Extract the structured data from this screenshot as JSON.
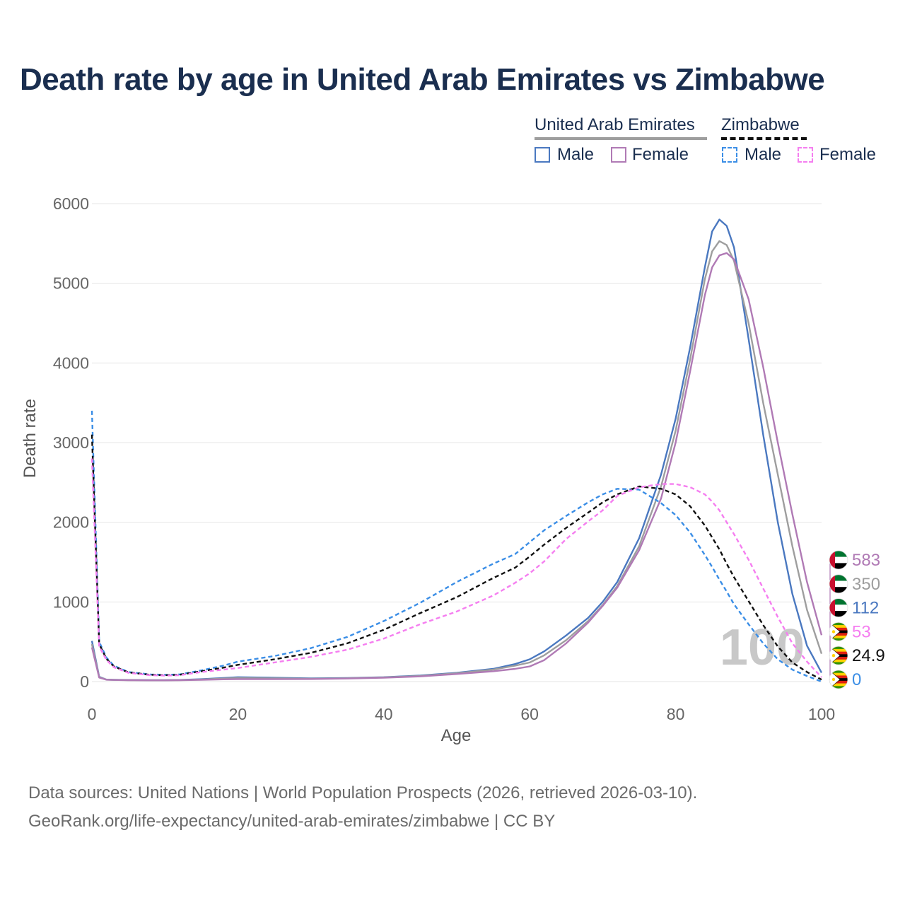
{
  "title": "Death rate by age in United Arab Emirates vs Zimbabwe",
  "legend": {
    "groups": [
      {
        "name": "United Arab Emirates",
        "line_style": "solid",
        "color": "#9e9e9e"
      },
      {
        "name": "Zimbabwe",
        "line_style": "dashed",
        "color": "#111111"
      }
    ],
    "items": [
      {
        "group": "United Arab Emirates",
        "label": "Male",
        "color": "#4a78c0",
        "dashed": false
      },
      {
        "group": "United Arab Emirates",
        "label": "Female",
        "color": "#b07ab5",
        "dashed": false
      },
      {
        "group": "Zimbabwe",
        "label": "Male",
        "color": "#3b8ee6",
        "dashed": true
      },
      {
        "group": "Zimbabwe",
        "label": "Female",
        "color": "#f57ef0",
        "dashed": true
      }
    ]
  },
  "chart_data": {
    "type": "line",
    "title": "Death rate by age in United Arab Emirates vs Zimbabwe",
    "xlabel": "Age",
    "ylabel": "Death rate",
    "xlim": [
      0,
      100
    ],
    "ylim": [
      0,
      6000
    ],
    "xticks": [
      0,
      20,
      40,
      60,
      80,
      100
    ],
    "yticks": [
      0,
      1000,
      2000,
      3000,
      4000,
      5000,
      6000
    ],
    "grid": true,
    "current_age_label": "100",
    "x": [
      0,
      1,
      2,
      3,
      5,
      8,
      10,
      12,
      15,
      18,
      20,
      25,
      30,
      35,
      40,
      45,
      50,
      55,
      58,
      60,
      62,
      65,
      68,
      70,
      72,
      75,
      78,
      80,
      82,
      84,
      85,
      86,
      87,
      88,
      90,
      92,
      94,
      96,
      98,
      100
    ],
    "series": [
      {
        "name": "United Arab Emirates Male",
        "country": "United Arab Emirates",
        "sex": "Male",
        "color": "#4a78c0",
        "dashed": false,
        "values": [
          510,
          60,
          25,
          22,
          20,
          18,
          18,
          20,
          30,
          45,
          55,
          48,
          40,
          45,
          55,
          75,
          110,
          160,
          220,
          280,
          380,
          580,
          800,
          1000,
          1250,
          1800,
          2600,
          3300,
          4200,
          5200,
          5650,
          5800,
          5720,
          5450,
          4300,
          3100,
          2000,
          1100,
          450,
          112
        ]
      },
      {
        "name": "United Arab Emirates Total",
        "country": "United Arab Emirates",
        "sex": "Total",
        "color": "#9e9e9e",
        "dashed": false,
        "values": [
          470,
          55,
          24,
          21,
          19,
          17,
          17,
          19,
          26,
          38,
          45,
          40,
          36,
          42,
          52,
          70,
          105,
          150,
          200,
          240,
          330,
          520,
          760,
          960,
          1200,
          1700,
          2450,
          3150,
          4050,
          5050,
          5400,
          5530,
          5480,
          5280,
          4500,
          3500,
          2600,
          1700,
          900,
          350
        ]
      },
      {
        "name": "United Arab Emirates Female",
        "country": "United Arab Emirates",
        "sex": "Female",
        "color": "#b07ab5",
        "dashed": false,
        "values": [
          430,
          50,
          23,
          20,
          18,
          16,
          16,
          18,
          22,
          28,
          30,
          30,
          32,
          38,
          48,
          65,
          95,
          130,
          160,
          190,
          270,
          480,
          740,
          950,
          1180,
          1650,
          2300,
          3000,
          3900,
          4850,
          5200,
          5350,
          5380,
          5300,
          4800,
          3950,
          3000,
          2100,
          1250,
          583
        ]
      },
      {
        "name": "Zimbabwe Male",
        "country": "Zimbabwe",
        "sex": "Male",
        "color": "#3b8ee6",
        "dashed": true,
        "values": [
          3400,
          500,
          300,
          200,
          120,
          90,
          85,
          90,
          140,
          200,
          250,
          320,
          420,
          560,
          760,
          990,
          1250,
          1480,
          1600,
          1750,
          1900,
          2080,
          2250,
          2350,
          2420,
          2410,
          2240,
          2090,
          1870,
          1590,
          1440,
          1280,
          1130,
          970,
          720,
          480,
          280,
          150,
          70,
          0
        ]
      },
      {
        "name": "Zimbabwe Total",
        "country": "Zimbabwe",
        "sex": "Total",
        "color": "#111111",
        "dashed": true,
        "values": [
          3100,
          470,
          285,
          190,
          115,
          85,
          80,
          85,
          130,
          175,
          210,
          280,
          360,
          480,
          650,
          860,
          1060,
          1300,
          1430,
          1570,
          1720,
          1930,
          2120,
          2250,
          2350,
          2450,
          2420,
          2350,
          2200,
          1960,
          1810,
          1660,
          1480,
          1310,
          1010,
          710,
          440,
          240,
          120,
          24.9
        ]
      },
      {
        "name": "Zimbabwe Female",
        "country": "Zimbabwe",
        "sex": "Female",
        "color": "#f57ef0",
        "dashed": true,
        "values": [
          2800,
          440,
          270,
          180,
          110,
          80,
          75,
          80,
          120,
          150,
          170,
          240,
          310,
          400,
          540,
          720,
          880,
          1080,
          1240,
          1360,
          1510,
          1790,
          2010,
          2150,
          2330,
          2440,
          2480,
          2480,
          2440,
          2350,
          2260,
          2150,
          2000,
          1850,
          1530,
          1170,
          810,
          480,
          250,
          53
        ]
      }
    ],
    "end_labels": [
      {
        "value": "583",
        "color": "#b07ab5",
        "country": "United Arab Emirates"
      },
      {
        "value": "350",
        "color": "#9e9e9e",
        "country": "United Arab Emirates"
      },
      {
        "value": "112",
        "color": "#4a78c0",
        "country": "United Arab Emirates"
      },
      {
        "value": "53",
        "color": "#f57ef0",
        "country": "Zimbabwe"
      },
      {
        "value": "24.9",
        "color": "#111111",
        "country": "Zimbabwe"
      },
      {
        "value": "0",
        "color": "#3b8ee6",
        "country": "Zimbabwe"
      }
    ]
  },
  "source": {
    "line1": "Data sources: United Nations | World Population Prospects (2026, retrieved 2026-03-10).",
    "line2": "GeoRank.org/life-expectancy/united-arab-emirates/zimbabwe | CC BY"
  }
}
